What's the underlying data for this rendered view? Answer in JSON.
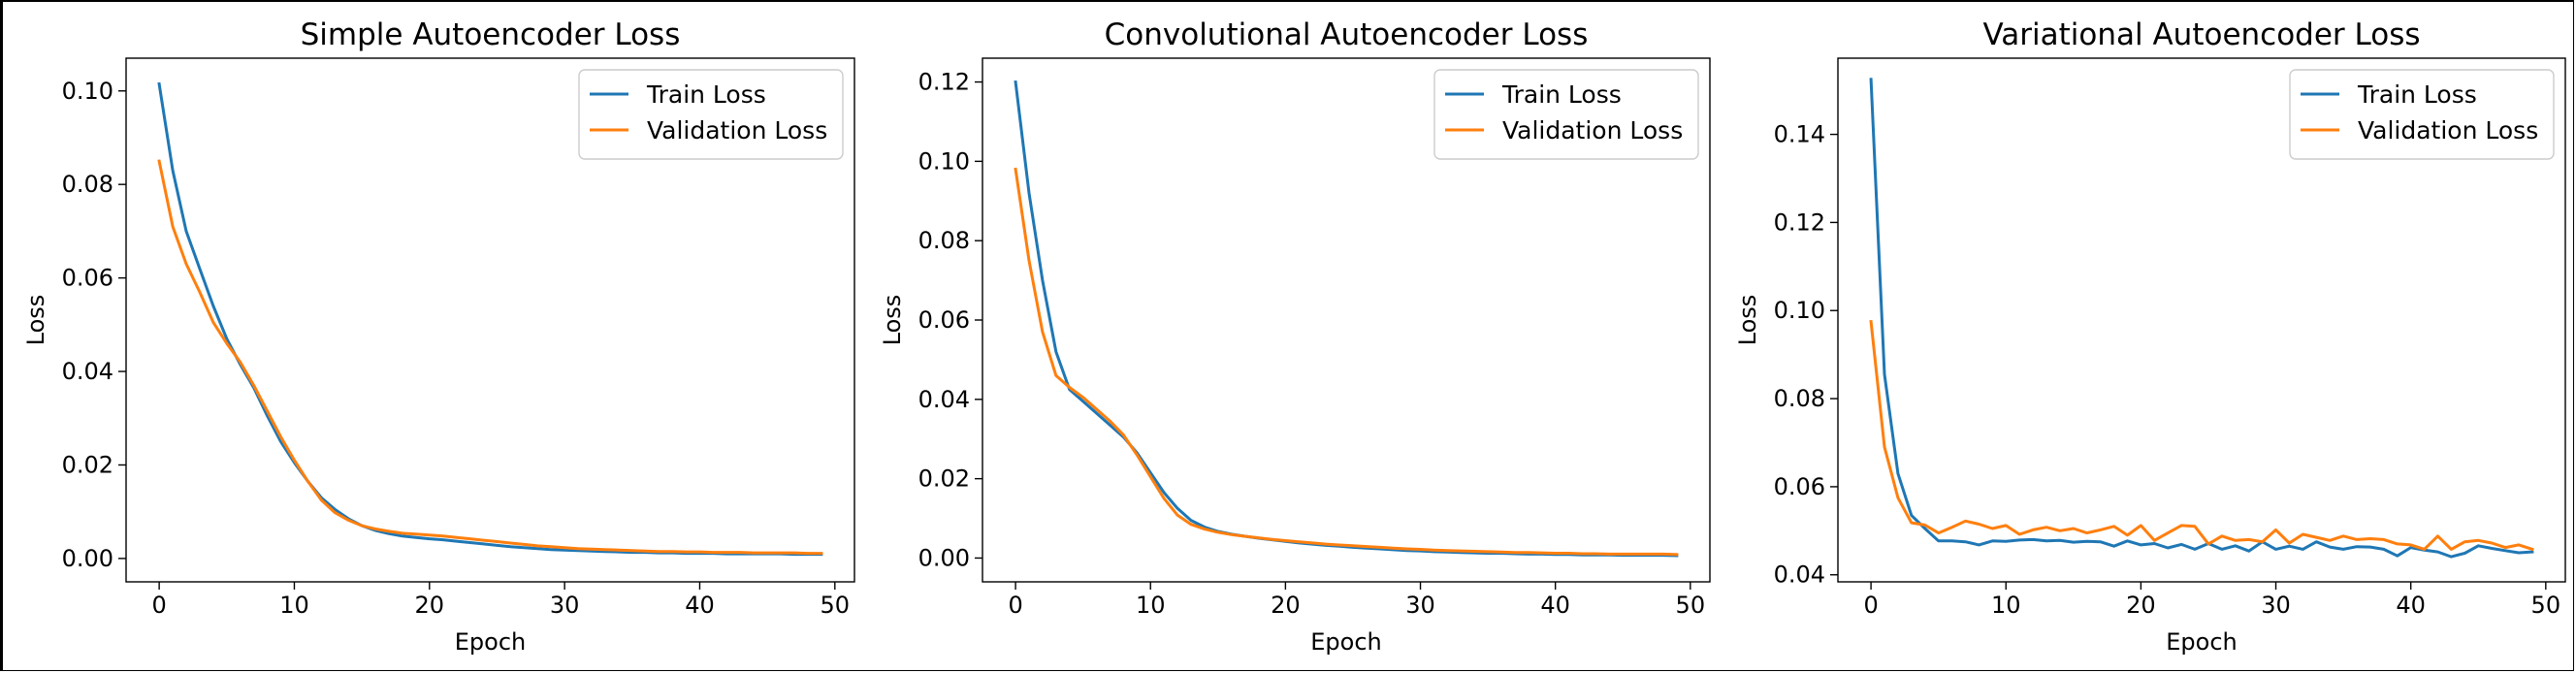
{
  "chart_data": [
    {
      "type": "line",
      "title": "Simple Autoencoder Loss",
      "xlabel": "Epoch",
      "ylabel": "Loss",
      "xlim": [
        -2.45,
        51.45
      ],
      "ylim": [
        -0.005,
        0.107
      ],
      "xticks": [
        0,
        10,
        20,
        30,
        40,
        50
      ],
      "xtick_labels": [
        "0",
        "10",
        "20",
        "30",
        "40",
        "50"
      ],
      "yticks": [
        0.0,
        0.02,
        0.04,
        0.06,
        0.08,
        0.1
      ],
      "ytick_labels": [
        "0.00",
        "0.02",
        "0.04",
        "0.06",
        "0.08",
        "0.10"
      ],
      "legend_position": "upper-right",
      "grid": false,
      "series": [
        {
          "name": "Train Loss",
          "color": "#1f77b4",
          "x_start": 0,
          "values": [
            0.1015,
            0.083,
            0.07,
            0.062,
            0.054,
            0.047,
            0.0415,
            0.0365,
            0.0305,
            0.025,
            0.0205,
            0.0165,
            0.013,
            0.0105,
            0.0085,
            0.007,
            0.006,
            0.0053,
            0.0048,
            0.0045,
            0.0042,
            0.004,
            0.0037,
            0.0034,
            0.0031,
            0.0028,
            0.0025,
            0.0023,
            0.0021,
            0.0019,
            0.0018,
            0.0017,
            0.0016,
            0.0015,
            0.0014,
            0.0013,
            0.0013,
            0.0012,
            0.0012,
            0.0011,
            0.0011,
            0.0011,
            0.001,
            0.001,
            0.001,
            0.001,
            0.001,
            0.0009,
            0.0009,
            0.0009
          ]
        },
        {
          "name": "Validation Loss",
          "color": "#ff7f0e",
          "x_start": 0,
          "values": [
            0.085,
            0.071,
            0.063,
            0.057,
            0.0505,
            0.046,
            0.042,
            0.037,
            0.0315,
            0.026,
            0.021,
            0.0165,
            0.0125,
            0.0098,
            0.0082,
            0.007,
            0.0063,
            0.0058,
            0.0054,
            0.0052,
            0.005,
            0.0048,
            0.0045,
            0.0042,
            0.0039,
            0.0036,
            0.0033,
            0.003,
            0.0027,
            0.0025,
            0.0023,
            0.0021,
            0.002,
            0.0019,
            0.0018,
            0.0017,
            0.0016,
            0.0015,
            0.0015,
            0.0014,
            0.0014,
            0.0013,
            0.0013,
            0.0013,
            0.0012,
            0.0012,
            0.0012,
            0.0012,
            0.0011,
            0.0011
          ]
        }
      ]
    },
    {
      "type": "line",
      "title": "Convolutional Autoencoder Loss",
      "xlabel": "Epoch",
      "ylabel": "Loss",
      "xlim": [
        -2.45,
        51.45
      ],
      "ylim": [
        -0.006,
        0.126
      ],
      "xticks": [
        0,
        10,
        20,
        30,
        40,
        50
      ],
      "xtick_labels": [
        "0",
        "10",
        "20",
        "30",
        "40",
        "50"
      ],
      "yticks": [
        0.0,
        0.02,
        0.04,
        0.06,
        0.08,
        0.1,
        0.12
      ],
      "ytick_labels": [
        "0.00",
        "0.02",
        "0.04",
        "0.06",
        "0.08",
        "0.10",
        "0.12"
      ],
      "legend_position": "upper-right",
      "grid": false,
      "series": [
        {
          "name": "Train Loss",
          "color": "#1f77b4",
          "x_start": 0,
          "values": [
            0.12,
            0.092,
            0.07,
            0.052,
            0.0425,
            0.0395,
            0.0365,
            0.0335,
            0.0305,
            0.0265,
            0.0215,
            0.0165,
            0.0125,
            0.0095,
            0.0078,
            0.0067,
            0.006,
            0.0055,
            0.005,
            0.0046,
            0.0042,
            0.0038,
            0.0035,
            0.0032,
            0.003,
            0.0027,
            0.0025,
            0.0023,
            0.0021,
            0.0019,
            0.0018,
            0.0016,
            0.0015,
            0.0014,
            0.0013,
            0.0012,
            0.0012,
            0.0011,
            0.001,
            0.001,
            0.0009,
            0.0009,
            0.0008,
            0.0008,
            0.0008,
            0.0007,
            0.0007,
            0.0007,
            0.0007,
            0.0006
          ]
        },
        {
          "name": "Validation Loss",
          "color": "#ff7f0e",
          "x_start": 0,
          "values": [
            0.098,
            0.075,
            0.057,
            0.046,
            0.043,
            0.0405,
            0.0375,
            0.0345,
            0.031,
            0.026,
            0.0205,
            0.015,
            0.0108,
            0.0085,
            0.0073,
            0.0065,
            0.0059,
            0.0055,
            0.0051,
            0.0047,
            0.0044,
            0.0041,
            0.0038,
            0.0035,
            0.0033,
            0.0031,
            0.0029,
            0.0027,
            0.0025,
            0.0023,
            0.0022,
            0.002,
            0.0019,
            0.0018,
            0.0017,
            0.0016,
            0.0015,
            0.0014,
            0.0014,
            0.0013,
            0.0012,
            0.0012,
            0.0011,
            0.0011,
            0.001,
            0.001,
            0.001,
            0.001,
            0.001,
            0.0009
          ]
        }
      ]
    },
    {
      "type": "line",
      "title": "Variational Autoencoder Loss",
      "xlabel": "Epoch",
      "ylabel": "Loss",
      "xlim": [
        -2.45,
        51.45
      ],
      "ylim": [
        0.0384,
        0.1573
      ],
      "xticks": [
        0,
        10,
        20,
        30,
        40,
        50
      ],
      "xtick_labels": [
        "0",
        "10",
        "20",
        "30",
        "40",
        "50"
      ],
      "yticks": [
        0.04,
        0.06,
        0.08,
        0.1,
        0.12,
        0.14
      ],
      "ytick_labels": [
        "0.04",
        "0.06",
        "0.08",
        "0.10",
        "0.12",
        "0.14"
      ],
      "legend_position": "upper-right",
      "grid": false,
      "series": [
        {
          "name": "Train Loss",
          "color": "#1f77b4",
          "x_start": 0,
          "values": [
            0.1525,
            0.0855,
            0.063,
            0.0535,
            0.0505,
            0.0477,
            0.0477,
            0.0475,
            0.0468,
            0.0477,
            0.0476,
            0.0479,
            0.048,
            0.0477,
            0.0478,
            0.0474,
            0.0476,
            0.0475,
            0.0465,
            0.0477,
            0.0468,
            0.0471,
            0.0461,
            0.0469,
            0.0458,
            0.0471,
            0.0458,
            0.0466,
            0.0454,
            0.0475,
            0.0458,
            0.0465,
            0.0458,
            0.0475,
            0.0463,
            0.0458,
            0.0464,
            0.0463,
            0.0458,
            0.0443,
            0.0462,
            0.0456,
            0.0452,
            0.0441,
            0.0449,
            0.0466,
            0.046,
            0.0455,
            0.045,
            0.0452
          ]
        },
        {
          "name": "Validation Loss",
          "color": "#ff7f0e",
          "x_start": 0,
          "values": [
            0.0975,
            0.069,
            0.0575,
            0.0518,
            0.0513,
            0.0495,
            0.0508,
            0.0522,
            0.0515,
            0.0505,
            0.0512,
            0.0492,
            0.0502,
            0.0508,
            0.05,
            0.0505,
            0.0495,
            0.0502,
            0.051,
            0.049,
            0.0512,
            0.0478,
            0.0495,
            0.0512,
            0.051,
            0.047,
            0.0488,
            0.0478,
            0.048,
            0.0475,
            0.0502,
            0.0472,
            0.0492,
            0.0485,
            0.0478,
            0.0488,
            0.048,
            0.0482,
            0.048,
            0.047,
            0.0468,
            0.0458,
            0.0488,
            0.0458,
            0.0475,
            0.0478,
            0.0472,
            0.0462,
            0.0468,
            0.0458
          ]
        }
      ]
    }
  ]
}
